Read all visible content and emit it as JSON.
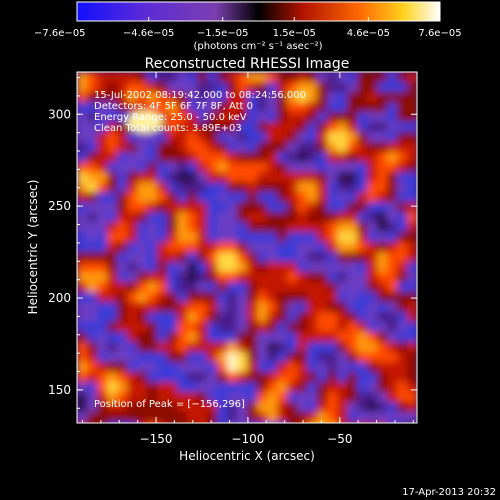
{
  "chart_data": {
    "type": "heatmap",
    "title": "Reconstructed RHESSI Image",
    "xlabel": "Heliocentric X (arcsec)",
    "ylabel": "Heliocentric Y (arcsec)",
    "xlim": [
      -193,
      -8
    ],
    "ylim": [
      132,
      323
    ],
    "x_ticks": [
      -150,
      -100,
      -50
    ],
    "x_tick_labels": [
      "−150",
      "−100",
      "−50"
    ],
    "y_ticks": [
      150,
      200,
      250,
      300
    ],
    "y_tick_labels": [
      "150",
      "200",
      "250",
      "300"
    ],
    "colorbar": {
      "min": -7.6e-05,
      "max": 7.6e-05,
      "tick_labels": [
        "−7.6e−05",
        "−4.6e−05",
        "−1.5e−05",
        "1.5e−05",
        "4.6e−05",
        "7.6e−05"
      ],
      "tick_values": [
        -7.6e-05,
        -4.6e-05,
        -1.5e-05,
        1.5e-05,
        4.6e-05,
        7.6e-05
      ],
      "units_label": "(photons cm⁻² s⁻¹ asec⁻²)"
    },
    "annotations": [
      "15-Jul-2002 08:19:42.000 to 08:24:56.000",
      "Detectors: 4F 5F 6F 7F 8F, Att 0",
      "Energy Range: 25.0 - 50.0 keV",
      "Clean   Total counts: 3.89E+03"
    ],
    "peak_label": "Position of Peak = [−156,296]",
    "peak_position": [
      -156,
      296
    ],
    "grid": false
  },
  "footer": {
    "timestamp": "17-Apr-2013 20:32"
  }
}
